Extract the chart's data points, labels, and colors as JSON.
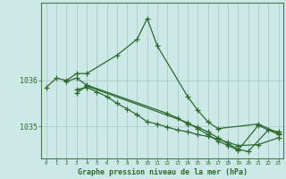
{
  "background_color": "#cce9e8",
  "grid_color": "#aacccc",
  "line_color": "#2d6a2d",
  "spine_color": "#4a7a4a",
  "title": "Graphe pression niveau de la mer (hPa)",
  "ylabel_ticks": [
    1035,
    1036
  ],
  "xlim": [
    -0.5,
    23.5
  ],
  "ylim": [
    1034.3,
    1037.7
  ],
  "series": [
    {
      "x": [
        0,
        1,
        2,
        3,
        4,
        7,
        9,
        10,
        11,
        14,
        15,
        16,
        17,
        21,
        23
      ],
      "y": [
        1035.85,
        1036.05,
        1036.0,
        1036.15,
        1036.15,
        1036.55,
        1036.9,
        1037.35,
        1036.75,
        1035.65,
        1035.35,
        1035.1,
        1034.95,
        1035.05,
        1034.85
      ]
    },
    {
      "x": [
        3,
        4,
        5,
        6,
        7,
        8,
        9,
        10,
        11,
        12,
        13,
        14,
        15,
        16,
        17,
        18,
        19,
        21,
        23
      ],
      "y": [
        1035.8,
        1035.85,
        1035.75,
        1035.65,
        1035.5,
        1035.38,
        1035.25,
        1035.1,
        1035.05,
        1034.98,
        1034.92,
        1034.88,
        1034.82,
        1034.78,
        1034.72,
        1034.65,
        1034.58,
        1034.6,
        1034.75
      ]
    },
    {
      "x": [
        2,
        3,
        4,
        12,
        13,
        14,
        15,
        16,
        17,
        18,
        19,
        20,
        22,
        23
      ],
      "y": [
        1035.98,
        1036.05,
        1035.9,
        1035.28,
        1035.18,
        1035.05,
        1034.98,
        1034.88,
        1034.75,
        1034.62,
        1034.5,
        1034.45,
        1034.92,
        1034.88
      ]
    },
    {
      "x": [
        3,
        4,
        14,
        15,
        16,
        17,
        18,
        19,
        21,
        23
      ],
      "y": [
        1035.72,
        1035.88,
        1035.08,
        1034.95,
        1034.82,
        1034.68,
        1034.58,
        1034.48,
        1035.02,
        1034.82
      ]
    }
  ]
}
